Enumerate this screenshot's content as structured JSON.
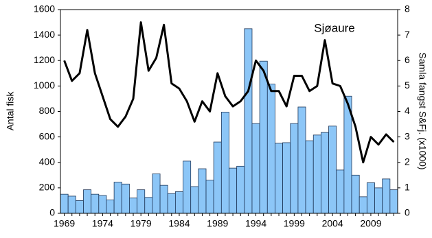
{
  "chart_data": {
    "type": "bar-line",
    "annotation": "Sjøaure",
    "y_label": "Antal fisk",
    "y2_label": "Samla fangst S&Fj. (x1000)",
    "categories": [
      "1969",
      null,
      null,
      null,
      null,
      "1974",
      null,
      null,
      null,
      null,
      "1979",
      null,
      null,
      null,
      null,
      "1984",
      null,
      null,
      null,
      null,
      "1989",
      null,
      null,
      null,
      null,
      "1994",
      null,
      null,
      null,
      null,
      "1999",
      null,
      null,
      null,
      null,
      "2004",
      null,
      null,
      null,
      null,
      "2009",
      null,
      null,
      null
    ],
    "series": [
      {
        "type": "bar",
        "color": "#8cc6f7",
        "values": [
          150,
          135,
          100,
          185,
          150,
          140,
          105,
          245,
          230,
          120,
          185,
          125,
          310,
          220,
          155,
          170,
          410,
          210,
          350,
          260,
          560,
          795,
          355,
          370,
          1450,
          705,
          1195,
          1015,
          550,
          555,
          705,
          835,
          570,
          615,
          635,
          685,
          340,
          920,
          300,
          130,
          240,
          200,
          270,
          185
        ]
      },
      {
        "type": "line",
        "color": "#000000",
        "axis": "y2",
        "values": [
          6.0,
          5.2,
          5.5,
          7.2,
          5.5,
          4.6,
          3.7,
          3.4,
          3.8,
          4.5,
          7.5,
          5.6,
          6.1,
          7.4,
          5.1,
          4.9,
          4.4,
          3.6,
          4.4,
          4.0,
          5.5,
          4.6,
          4.2,
          4.4,
          4.8,
          6.0,
          5.6,
          4.8,
          4.8,
          4.2,
          5.4,
          5.4,
          4.8,
          5.0,
          6.8,
          5.1,
          5.0,
          4.3,
          3.4,
          2.0,
          3.0,
          2.7,
          3.1,
          2.8
        ]
      }
    ],
    "ylim": [
      0,
      1600
    ],
    "yticks": [
      0,
      200,
      400,
      600,
      800,
      1000,
      1200,
      1400,
      1600
    ],
    "y2lim": [
      0,
      8
    ],
    "y2ticks": [
      0,
      1,
      2,
      3,
      4,
      5,
      6,
      7,
      8
    ]
  }
}
